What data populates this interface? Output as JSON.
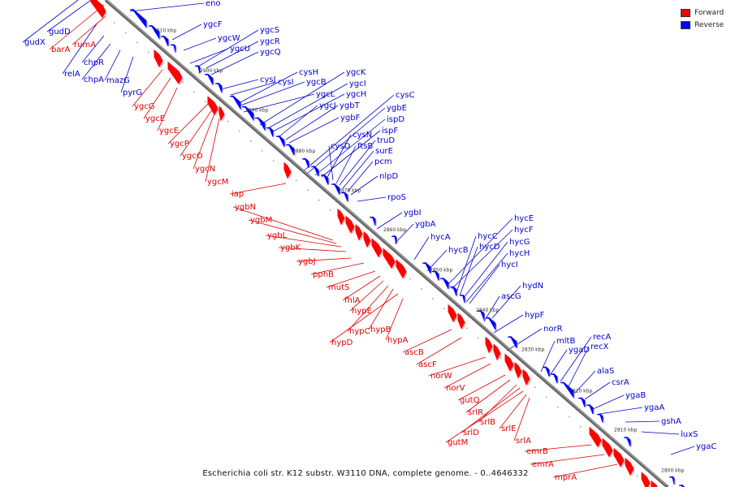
{
  "caption": "Escherichia coli str. K12 substr. W3110 DNA, complete genome. - 0..4646332",
  "legend": [
    {
      "label": "Forward",
      "color": "#ff0000"
    },
    {
      "label": "Reverse",
      "color": "#0000ff"
    }
  ],
  "colors": {
    "forward": "#ff0000",
    "reverse": "#0000ff",
    "axis": "#666666",
    "label_forward": "#dd0000",
    "label_reverse": "#0000cc"
  },
  "ticks": [
    "2910 kbp",
    "2900 kbp",
    "2890 kbp",
    "2880 kbp",
    "2870 kbp",
    "2860 kbp",
    "2850 kbp",
    "2840 kbp",
    "2830 kbp",
    "2820 kbp",
    "2810 kbp",
    "2800 kbp"
  ],
  "reverse_labels": [
    "eno",
    "ygcF",
    "ygcW",
    "ygcU",
    "ygcS",
    "ygcR",
    "ygcQ",
    "cysJ",
    "cysI",
    "cysH",
    "ygcB",
    "ygcL",
    "ygcK",
    "ygcI",
    "ygcH",
    "ygcJ",
    "ygbT",
    "ygbF",
    "cysC",
    "ygbE",
    "ispD",
    "ispF",
    "cysN",
    "cysD",
    "ftsB",
    "truD",
    "surE",
    "pcm",
    "nlpD",
    "rpoS",
    "ygbI",
    "ygbA",
    "hycA",
    "hycB",
    "hycE",
    "hycF",
    "hycC",
    "hycD",
    "hycG",
    "hycH",
    "hycI",
    "hydN",
    "ascG",
    "hypF",
    "norR",
    "mltB",
    "ygaD",
    "recA",
    "recX",
    "alaS",
    "csrA",
    "ygaB",
    "ygaA",
    "gshA",
    "luxS",
    "ygaC",
    "gudX",
    "gudD",
    "relA",
    "chpR",
    "chpA",
    "mazG",
    "pyrG"
  ],
  "forward_labels": [
    "barA",
    "rumA",
    "ygcG",
    "ygcE",
    "ygcE",
    "ygcP",
    "ygcO",
    "ygcN",
    "ygcM",
    "iap",
    "ygbN",
    "ygbM",
    "ygbL",
    "ygbK",
    "ygbJ",
    "pphB",
    "mutS",
    "fhlA",
    "hypE",
    "hypC",
    "hypB",
    "hypD",
    "hypA",
    "ascB",
    "ascF",
    "norW",
    "norV",
    "gutQ",
    "srlR",
    "srlB",
    "srlD",
    "gutM",
    "srlE",
    "srlA",
    "emrB",
    "emrA",
    "mprA"
  ]
}
